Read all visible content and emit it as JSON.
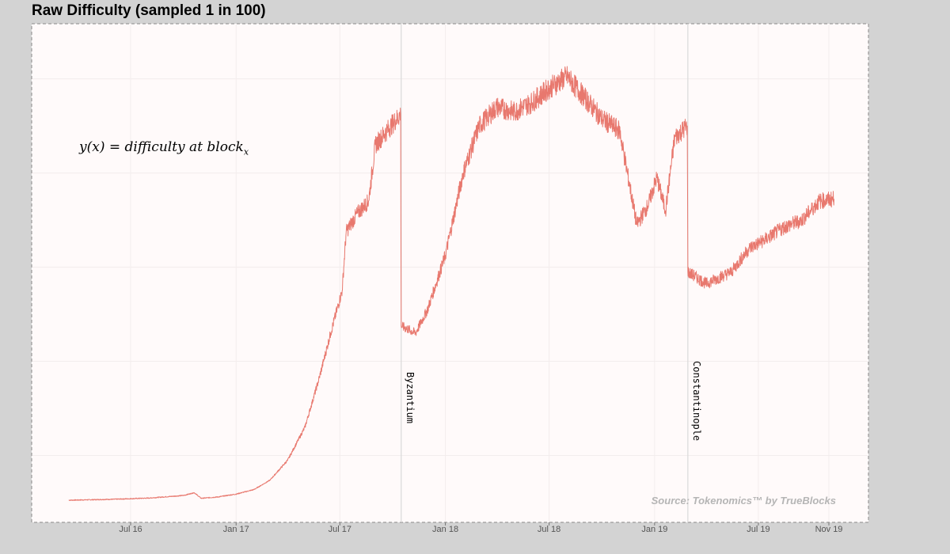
{
  "title": "Raw Difficulty (sampled 1 in 100)",
  "formula": {
    "main": "y(x) = difficulty at block",
    "subscript": "x"
  },
  "source_note": "Source: Tokenomics™ by TrueBlocks",
  "colors": {
    "line": "#e8786e",
    "panel": "#fffafa",
    "outer": "#d3d3d3",
    "border": "#888888",
    "grid": "#f3eded",
    "vline": "#d9d9d9"
  },
  "chart_data": {
    "type": "line",
    "title": "Raw Difficulty (sampled 1 in 100)",
    "xlabel": "",
    "ylabel": "",
    "x_ticks": [
      {
        "label": "Jul 16",
        "date": "2016-07-01"
      },
      {
        "label": "Jan 17",
        "date": "2017-01-01"
      },
      {
        "label": "Jul 17",
        "date": "2017-07-01"
      },
      {
        "label": "Jan 18",
        "date": "2018-01-01"
      },
      {
        "label": "Jul 18",
        "date": "2018-07-01"
      },
      {
        "label": "Jan 19",
        "date": "2019-01-01"
      },
      {
        "label": "Jul 19",
        "date": "2019-07-01"
      },
      {
        "label": "Nov 19",
        "date": "2019-11-01"
      }
    ],
    "y_tick_labels_shown": false,
    "events": [
      {
        "label": "Byzantium",
        "date": "2017-10-16"
      },
      {
        "label": "Constantinople",
        "date": "2019-02-28"
      }
    ],
    "series": [
      {
        "points": [
          [
            "2016-03-15",
            0.1
          ],
          [
            "2016-06-01",
            0.14
          ],
          [
            "2016-08-01",
            0.19
          ],
          [
            "2016-10-01",
            0.3
          ],
          [
            "2016-10-20",
            0.42
          ],
          [
            "2016-11-01",
            0.18
          ],
          [
            "2016-12-01",
            0.24
          ],
          [
            "2017-01-01",
            0.36
          ],
          [
            "2017-02-01",
            0.55
          ],
          [
            "2017-03-01",
            0.95
          ],
          [
            "2017-04-01",
            1.8
          ],
          [
            "2017-05-01",
            3.2
          ],
          [
            "2017-05-25",
            5.2
          ],
          [
            "2017-06-15",
            7.2
          ],
          [
            "2017-07-05",
            9.0
          ],
          [
            "2017-07-12",
            11.5
          ],
          [
            "2017-08-01",
            12.3
          ],
          [
            "2017-08-20",
            12.8
          ],
          [
            "2017-09-01",
            15.2
          ],
          [
            "2017-10-15",
            16.5
          ],
          [
            "2017-10-16",
            7.5
          ],
          [
            "2017-11-10",
            7.2
          ],
          [
            "2017-12-01",
            8.2
          ],
          [
            "2018-01-01",
            10.5
          ],
          [
            "2018-02-01",
            14.0
          ],
          [
            "2018-03-01",
            16.0
          ],
          [
            "2018-04-01",
            16.8
          ],
          [
            "2018-05-01",
            16.6
          ],
          [
            "2018-06-01",
            17.0
          ],
          [
            "2018-07-01",
            17.6
          ],
          [
            "2018-08-01",
            18.1
          ],
          [
            "2018-09-01",
            17.2
          ],
          [
            "2018-10-01",
            16.3
          ],
          [
            "2018-11-01",
            15.8
          ],
          [
            "2018-12-01",
            11.8
          ],
          [
            "2018-12-20",
            12.6
          ],
          [
            "2019-01-05",
            13.8
          ],
          [
            "2019-01-20",
            12.4
          ],
          [
            "2019-02-05",
            15.5
          ],
          [
            "2019-02-27",
            16.0
          ],
          [
            "2019-02-28",
            9.8
          ],
          [
            "2019-04-01",
            9.3
          ],
          [
            "2019-05-15",
            9.8
          ],
          [
            "2019-06-15",
            10.8
          ],
          [
            "2019-07-15",
            11.2
          ],
          [
            "2019-08-15",
            11.7
          ],
          [
            "2019-09-15",
            12.0
          ],
          [
            "2019-10-15",
            12.8
          ],
          [
            "2019-11-10",
            12.9
          ]
        ]
      }
    ]
  }
}
